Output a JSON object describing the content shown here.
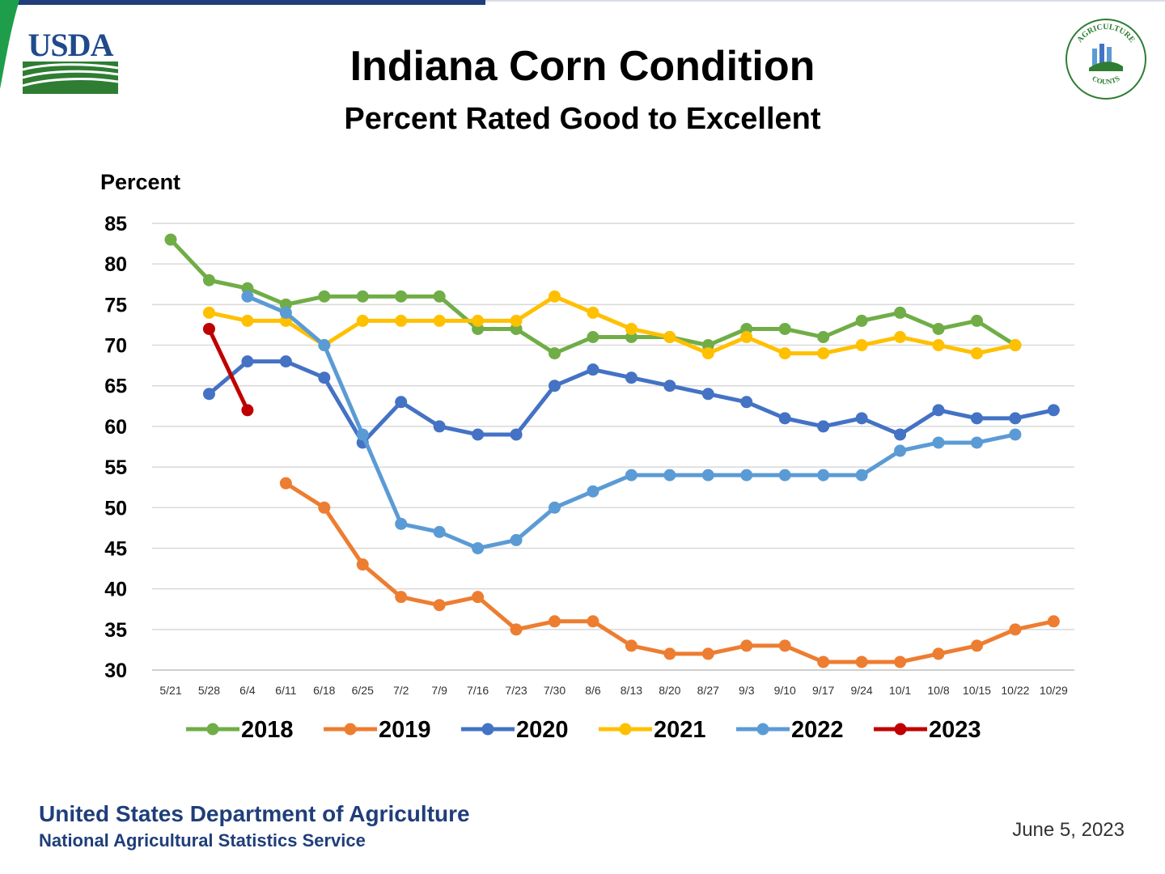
{
  "header": {
    "title": "Indiana Corn Condition",
    "subtitle": "Percent Rated Good to Excellent",
    "logo_left_text": "USDA",
    "logo_right_text": "AGRICULTURE COUNTS"
  },
  "footer": {
    "organization": "United States Department of Agriculture",
    "agency": "National Agricultural Statistics Service",
    "date": "June 5, 2023"
  },
  "colors": {
    "usda_blue": "#1f4a8c",
    "usda_green": "#2e7d32",
    "grid": "#d9d9d9"
  },
  "chart_data": {
    "type": "line",
    "title": "Indiana Corn Condition",
    "subtitle": "Percent Rated Good to Excellent",
    "ylabel": "Percent",
    "xlabel": "",
    "ylim": [
      30,
      85
    ],
    "yticks": [
      85,
      80,
      75,
      70,
      65,
      60,
      55,
      50,
      45,
      40,
      35,
      30
    ],
    "grid": "horizontal",
    "legend": "bottom",
    "categories": [
      "5/21",
      "5/28",
      "6/4",
      "6/11",
      "6/18",
      "6/25",
      "7/2",
      "7/9",
      "7/16",
      "7/23",
      "7/30",
      "8/6",
      "8/13",
      "8/20",
      "8/27",
      "9/3",
      "9/10",
      "9/17",
      "9/24",
      "10/1",
      "10/8",
      "10/15",
      "10/22",
      "10/29"
    ],
    "series": [
      {
        "name": "2018",
        "color": "#70ad47",
        "values": [
          83,
          78,
          77,
          75,
          76,
          76,
          76,
          76,
          72,
          72,
          69,
          71,
          71,
          71,
          70,
          72,
          72,
          71,
          73,
          74,
          72,
          73,
          70,
          null
        ]
      },
      {
        "name": "2019",
        "color": "#ed7d31",
        "values": [
          null,
          null,
          null,
          53,
          50,
          43,
          39,
          38,
          39,
          35,
          36,
          36,
          33,
          32,
          32,
          33,
          33,
          31,
          31,
          31,
          32,
          33,
          35,
          36
        ]
      },
      {
        "name": "2020",
        "color": "#4472c4",
        "values": [
          null,
          64,
          68,
          68,
          66,
          58,
          63,
          60,
          59,
          59,
          65,
          67,
          66,
          65,
          64,
          63,
          61,
          60,
          61,
          59,
          62,
          61,
          61,
          62
        ]
      },
      {
        "name": "2021",
        "color": "#ffc000",
        "values": [
          null,
          74,
          73,
          73,
          70,
          73,
          73,
          73,
          73,
          73,
          76,
          74,
          72,
          71,
          69,
          71,
          69,
          69,
          70,
          71,
          70,
          69,
          70,
          null
        ]
      },
      {
        "name": "2022",
        "color": "#5b9bd5",
        "values": [
          null,
          null,
          76,
          74,
          70,
          59,
          48,
          47,
          45,
          46,
          50,
          52,
          54,
          54,
          54,
          54,
          54,
          54,
          54,
          57,
          58,
          58,
          59,
          null
        ]
      },
      {
        "name": "2023",
        "color": "#c00000",
        "values": [
          null,
          72,
          62,
          null,
          null,
          null,
          null,
          null,
          null,
          null,
          null,
          null,
          null,
          null,
          null,
          null,
          null,
          null,
          null,
          null,
          null,
          null,
          null,
          null
        ]
      }
    ]
  }
}
